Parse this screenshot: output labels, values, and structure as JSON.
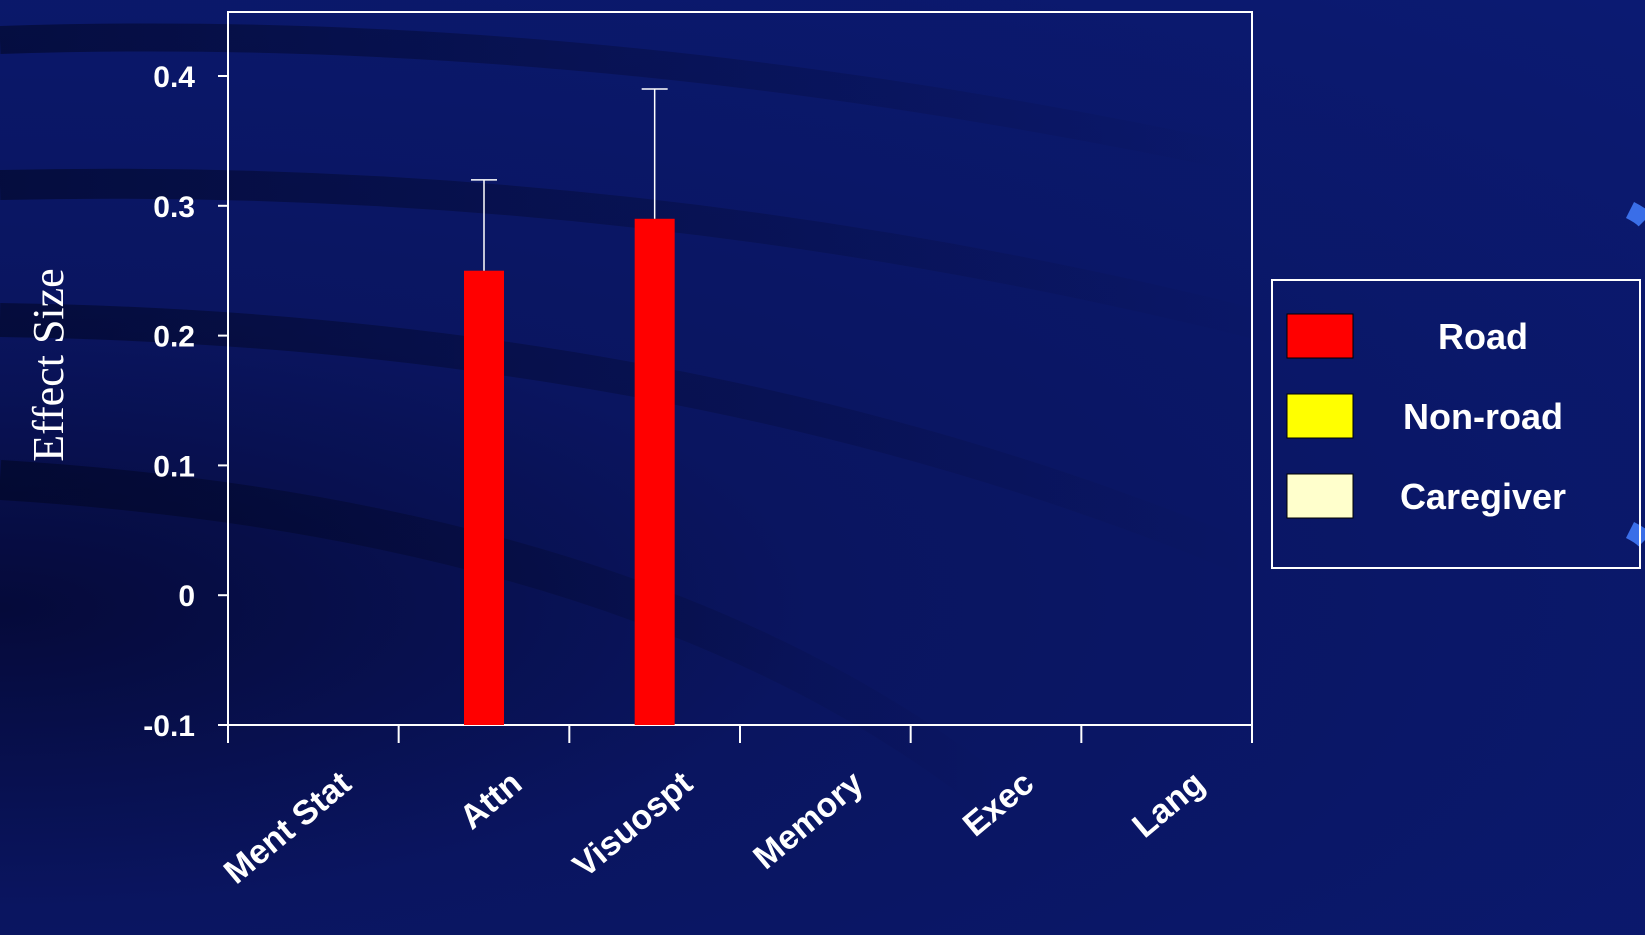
{
  "chart_data": {
    "type": "bar",
    "title": "",
    "xlabel": "",
    "ylabel": "Effect Size",
    "ylim": [
      -0.1,
      0.45
    ],
    "yticks": [
      "-0.1",
      "0",
      "0.1",
      "0.2",
      "0.3",
      "0.4"
    ],
    "ytick_values": [
      -0.1,
      0,
      0.1,
      0.2,
      0.3,
      0.4
    ],
    "categories": [
      "Ment Stat",
      "Attn",
      "Visuospt",
      "Memory",
      "Exec",
      "Lang"
    ],
    "series": [
      {
        "name": "Road",
        "color": "#ff0000",
        "values": [
          null,
          0.25,
          0.29,
          null,
          null,
          null
        ],
        "error_upper": [
          null,
          0.32,
          0.39,
          null,
          null,
          null
        ]
      },
      {
        "name": "Non-road",
        "color": "#ffff00",
        "values": [
          null,
          null,
          null,
          null,
          null,
          null
        ]
      },
      {
        "name": "Caregiver",
        "color": "#ffffcc",
        "values": [
          null,
          null,
          null,
          null,
          null,
          null
        ]
      }
    ],
    "grid": false,
    "legend_position": "right",
    "colors": {
      "axis": "#ffffff",
      "background": "#0b1a72"
    }
  }
}
